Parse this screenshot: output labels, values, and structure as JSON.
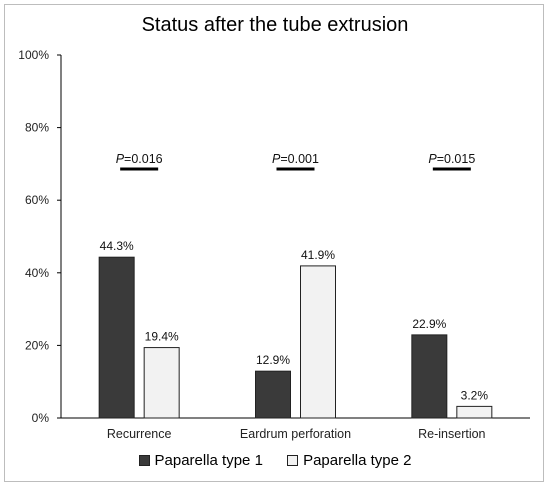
{
  "chart_data": {
    "type": "bar",
    "title": "Status after the tube extrusion",
    "xlabel": "",
    "ylabel": "",
    "ylim": [
      0,
      100
    ],
    "yticks": [
      "0%",
      "20%",
      "40%",
      "60%",
      "80%",
      "100%"
    ],
    "categories": [
      "Recurrence",
      "Eardrum perforation",
      "Re-insertion"
    ],
    "series": [
      {
        "name": "Paparella type 1",
        "values": [
          44.3,
          12.9,
          22.9
        ],
        "labels": [
          "44.3%",
          "12.9%",
          "22.9%"
        ],
        "color": "#3a3a3a"
      },
      {
        "name": "Paparella type 2",
        "values": [
          19.4,
          41.9,
          3.2
        ],
        "labels": [
          "19.4%",
          "41.9%",
          "3.2%"
        ],
        "color": "#f2f2f2"
      }
    ],
    "annotations": [
      {
        "text": "P=0.016",
        "category": "Recurrence"
      },
      {
        "text": "P=0.001",
        "category": "Eardrum perforation"
      },
      {
        "text": "P=0.015",
        "category": "Re-insertion"
      }
    ],
    "grid": false,
    "legend": "bottom"
  }
}
